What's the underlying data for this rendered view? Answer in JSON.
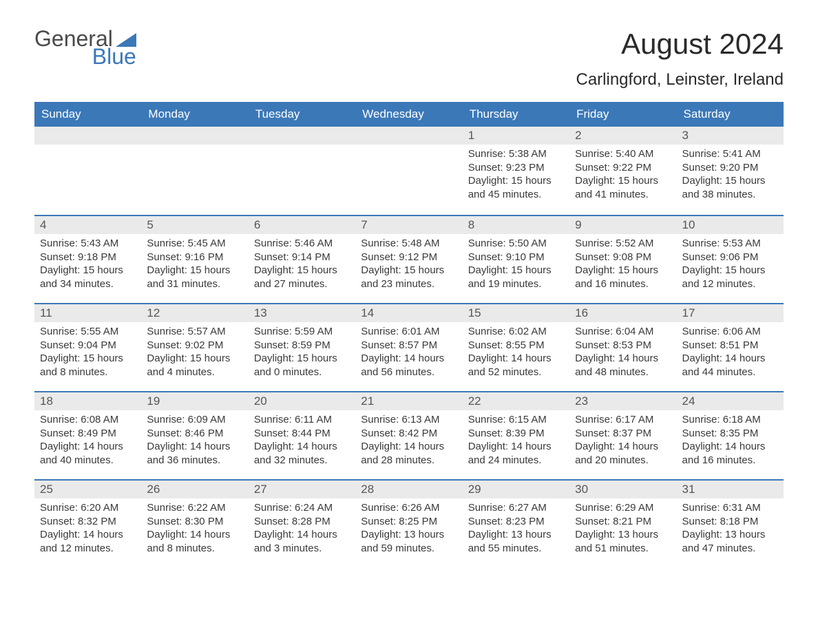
{
  "logo": {
    "text1": "General",
    "text2": "Blue",
    "tri_color": "#3b78b8"
  },
  "title": "August 2024",
  "location": "Carlingford, Leinster, Ireland",
  "colors": {
    "header_bg": "#3b78b8",
    "header_text": "#ffffff",
    "daynum_bg": "#eaeaea",
    "daynum_text": "#555555",
    "body_text": "#3a3a3a",
    "week_divider": "#3b78b8",
    "page_bg": "#ffffff"
  },
  "fonts": {
    "title_size": 42,
    "location_size": 24,
    "dow_size": 17,
    "daynum_size": 17,
    "body_size": 15
  },
  "days_of_week": [
    "Sunday",
    "Monday",
    "Tuesday",
    "Wednesday",
    "Thursday",
    "Friday",
    "Saturday"
  ],
  "weeks": [
    [
      null,
      null,
      null,
      null,
      {
        "n": "1",
        "sunrise": "Sunrise: 5:38 AM",
        "sunset": "Sunset: 9:23 PM",
        "daylight": "Daylight: 15 hours and 45 minutes."
      },
      {
        "n": "2",
        "sunrise": "Sunrise: 5:40 AM",
        "sunset": "Sunset: 9:22 PM",
        "daylight": "Daylight: 15 hours and 41 minutes."
      },
      {
        "n": "3",
        "sunrise": "Sunrise: 5:41 AM",
        "sunset": "Sunset: 9:20 PM",
        "daylight": "Daylight: 15 hours and 38 minutes."
      }
    ],
    [
      {
        "n": "4",
        "sunrise": "Sunrise: 5:43 AM",
        "sunset": "Sunset: 9:18 PM",
        "daylight": "Daylight: 15 hours and 34 minutes."
      },
      {
        "n": "5",
        "sunrise": "Sunrise: 5:45 AM",
        "sunset": "Sunset: 9:16 PM",
        "daylight": "Daylight: 15 hours and 31 minutes."
      },
      {
        "n": "6",
        "sunrise": "Sunrise: 5:46 AM",
        "sunset": "Sunset: 9:14 PM",
        "daylight": "Daylight: 15 hours and 27 minutes."
      },
      {
        "n": "7",
        "sunrise": "Sunrise: 5:48 AM",
        "sunset": "Sunset: 9:12 PM",
        "daylight": "Daylight: 15 hours and 23 minutes."
      },
      {
        "n": "8",
        "sunrise": "Sunrise: 5:50 AM",
        "sunset": "Sunset: 9:10 PM",
        "daylight": "Daylight: 15 hours and 19 minutes."
      },
      {
        "n": "9",
        "sunrise": "Sunrise: 5:52 AM",
        "sunset": "Sunset: 9:08 PM",
        "daylight": "Daylight: 15 hours and 16 minutes."
      },
      {
        "n": "10",
        "sunrise": "Sunrise: 5:53 AM",
        "sunset": "Sunset: 9:06 PM",
        "daylight": "Daylight: 15 hours and 12 minutes."
      }
    ],
    [
      {
        "n": "11",
        "sunrise": "Sunrise: 5:55 AM",
        "sunset": "Sunset: 9:04 PM",
        "daylight": "Daylight: 15 hours and 8 minutes."
      },
      {
        "n": "12",
        "sunrise": "Sunrise: 5:57 AM",
        "sunset": "Sunset: 9:02 PM",
        "daylight": "Daylight: 15 hours and 4 minutes."
      },
      {
        "n": "13",
        "sunrise": "Sunrise: 5:59 AM",
        "sunset": "Sunset: 8:59 PM",
        "daylight": "Daylight: 15 hours and 0 minutes."
      },
      {
        "n": "14",
        "sunrise": "Sunrise: 6:01 AM",
        "sunset": "Sunset: 8:57 PM",
        "daylight": "Daylight: 14 hours and 56 minutes."
      },
      {
        "n": "15",
        "sunrise": "Sunrise: 6:02 AM",
        "sunset": "Sunset: 8:55 PM",
        "daylight": "Daylight: 14 hours and 52 minutes."
      },
      {
        "n": "16",
        "sunrise": "Sunrise: 6:04 AM",
        "sunset": "Sunset: 8:53 PM",
        "daylight": "Daylight: 14 hours and 48 minutes."
      },
      {
        "n": "17",
        "sunrise": "Sunrise: 6:06 AM",
        "sunset": "Sunset: 8:51 PM",
        "daylight": "Daylight: 14 hours and 44 minutes."
      }
    ],
    [
      {
        "n": "18",
        "sunrise": "Sunrise: 6:08 AM",
        "sunset": "Sunset: 8:49 PM",
        "daylight": "Daylight: 14 hours and 40 minutes."
      },
      {
        "n": "19",
        "sunrise": "Sunrise: 6:09 AM",
        "sunset": "Sunset: 8:46 PM",
        "daylight": "Daylight: 14 hours and 36 minutes."
      },
      {
        "n": "20",
        "sunrise": "Sunrise: 6:11 AM",
        "sunset": "Sunset: 8:44 PM",
        "daylight": "Daylight: 14 hours and 32 minutes."
      },
      {
        "n": "21",
        "sunrise": "Sunrise: 6:13 AM",
        "sunset": "Sunset: 8:42 PM",
        "daylight": "Daylight: 14 hours and 28 minutes."
      },
      {
        "n": "22",
        "sunrise": "Sunrise: 6:15 AM",
        "sunset": "Sunset: 8:39 PM",
        "daylight": "Daylight: 14 hours and 24 minutes."
      },
      {
        "n": "23",
        "sunrise": "Sunrise: 6:17 AM",
        "sunset": "Sunset: 8:37 PM",
        "daylight": "Daylight: 14 hours and 20 minutes."
      },
      {
        "n": "24",
        "sunrise": "Sunrise: 6:18 AM",
        "sunset": "Sunset: 8:35 PM",
        "daylight": "Daylight: 14 hours and 16 minutes."
      }
    ],
    [
      {
        "n": "25",
        "sunrise": "Sunrise: 6:20 AM",
        "sunset": "Sunset: 8:32 PM",
        "daylight": "Daylight: 14 hours and 12 minutes."
      },
      {
        "n": "26",
        "sunrise": "Sunrise: 6:22 AM",
        "sunset": "Sunset: 8:30 PM",
        "daylight": "Daylight: 14 hours and 8 minutes."
      },
      {
        "n": "27",
        "sunrise": "Sunrise: 6:24 AM",
        "sunset": "Sunset: 8:28 PM",
        "daylight": "Daylight: 14 hours and 3 minutes."
      },
      {
        "n": "28",
        "sunrise": "Sunrise: 6:26 AM",
        "sunset": "Sunset: 8:25 PM",
        "daylight": "Daylight: 13 hours and 59 minutes."
      },
      {
        "n": "29",
        "sunrise": "Sunrise: 6:27 AM",
        "sunset": "Sunset: 8:23 PM",
        "daylight": "Daylight: 13 hours and 55 minutes."
      },
      {
        "n": "30",
        "sunrise": "Sunrise: 6:29 AM",
        "sunset": "Sunset: 8:21 PM",
        "daylight": "Daylight: 13 hours and 51 minutes."
      },
      {
        "n": "31",
        "sunrise": "Sunrise: 6:31 AM",
        "sunset": "Sunset: 8:18 PM",
        "daylight": "Daylight: 13 hours and 47 minutes."
      }
    ]
  ]
}
